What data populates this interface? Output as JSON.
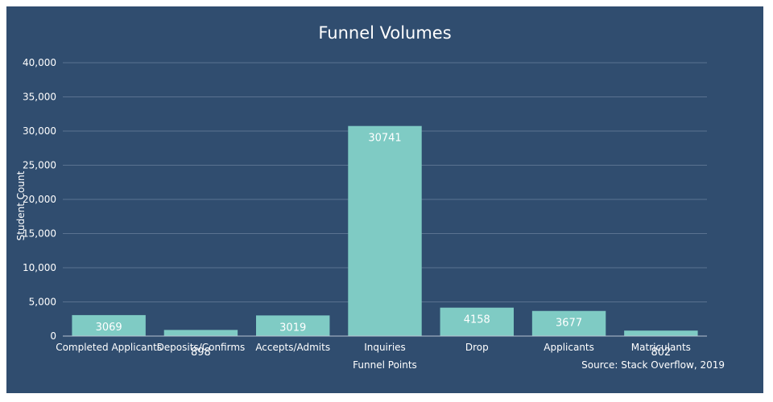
{
  "chart_data": {
    "type": "bar",
    "title": "Funnel Volumes",
    "xlabel": "Funnel Points",
    "ylabel": "Student Count",
    "categories": [
      "Completed Applicants",
      "Deposits/Confirms",
      "Accepts/Admits",
      "Inquiries",
      "Drop",
      "Applicants",
      "Matriculants"
    ],
    "values": [
      3069,
      898,
      3019,
      30741,
      4158,
      3677,
      802
    ],
    "data_labels": [
      "3069",
      "898",
      "3019",
      "30741",
      "4158",
      "3677",
      "802"
    ],
    "ylim": [
      0,
      40000
    ],
    "yticks": [
      0,
      5000,
      10000,
      15000,
      20000,
      25000,
      30000,
      35000,
      40000
    ],
    "ytick_labels": [
      "0",
      "5,000",
      "10,000",
      "15,000",
      "20,000",
      "25,000",
      "30,000",
      "35,000",
      "40,000"
    ],
    "grid": true,
    "colors": {
      "background": "#304d6f",
      "bar": "#7fcbc4",
      "text": "#ffffff"
    }
  },
  "source": "Source: Stack Overflow, 2019"
}
